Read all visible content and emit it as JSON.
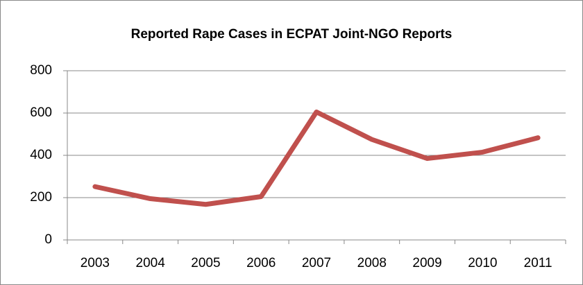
{
  "chart_data": {
    "type": "line",
    "title": "Reported Rape Cases in ECPAT Joint-NGO Reports",
    "categories": [
      "2003",
      "2004",
      "2005",
      "2006",
      "2007",
      "2008",
      "2009",
      "2010",
      "2011"
    ],
    "series": [
      {
        "name": "Reported Rape Cases",
        "color": "#c0504d",
        "values": [
          252,
          195,
          168,
          205,
          605,
          475,
          385,
          415,
          483
        ]
      }
    ],
    "ylim": [
      0,
      800
    ],
    "yticks": [
      0,
      200,
      400,
      600,
      800
    ],
    "grid": true
  }
}
